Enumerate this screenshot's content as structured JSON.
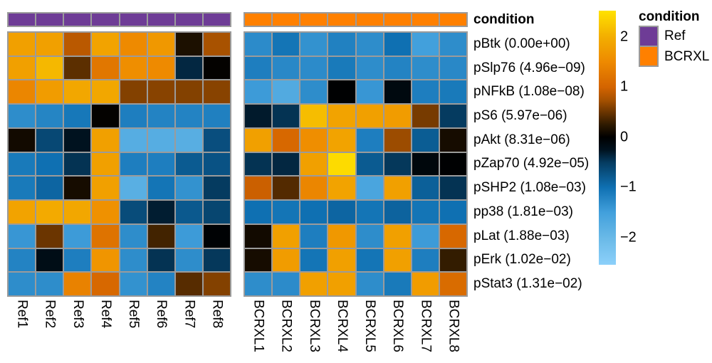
{
  "annotation": {
    "label": "condition",
    "groups": [
      {
        "name": "Ref",
        "color": "#6e3c96",
        "n_columns": 8
      },
      {
        "name": "BCRXL",
        "color": "#ff8000",
        "n_columns": 8
      }
    ]
  },
  "legend": {
    "title": "condition",
    "items": [
      {
        "label": "Ref",
        "color": "#6e3c96"
      },
      {
        "label": "BCRXL",
        "color": "#ff8000"
      }
    ]
  },
  "colorbar": {
    "ticks": [
      {
        "value": 2,
        "label": "2"
      },
      {
        "value": 1,
        "label": "1"
      },
      {
        "value": 0,
        "label": "0"
      },
      {
        "value": -1,
        "label": "−1"
      },
      {
        "value": -2,
        "label": "−2"
      }
    ],
    "domain": [
      -2.54,
      2.52
    ],
    "stops": [
      [
        2.52,
        "#FFE200"
      ],
      [
        2.0,
        "#F3AE00"
      ],
      [
        1.5,
        "#EE8A00"
      ],
      [
        1.0,
        "#D46400"
      ],
      [
        0.75,
        "#A85200"
      ],
      [
        0.5,
        "#6B3500"
      ],
      [
        0.25,
        "#2E1A00"
      ],
      [
        0.0,
        "#000000"
      ],
      [
        -0.25,
        "#00121F"
      ],
      [
        -0.5,
        "#053B60"
      ],
      [
        -1.0,
        "#0F70B2"
      ],
      [
        -1.5,
        "#42A0DC"
      ],
      [
        -2.0,
        "#69B9E7"
      ],
      [
        -2.54,
        "#8CD0FA"
      ]
    ],
    "gridline_color": "#9b9b9b"
  },
  "chart_data": {
    "type": "heatmap",
    "title": "",
    "zlim": [
      -2.54,
      2.52
    ],
    "rows": [
      "pBtk (0.00e+00)",
      "pSlp76 (4.96e−09)",
      "pNFkB (1.08e−08)",
      "pS6 (5.97e−06)",
      "pAkt (8.31e−06)",
      "pZap70 (4.92e−05)",
      "pSHP2 (1.08e−03)",
      "pp38 (1.81e−03)",
      "pLat (1.88e−03)",
      "pErk (1.02e−02)",
      "pStat3 (1.31e−02)"
    ],
    "columns_left": [
      "Ref1",
      "Ref2",
      "Ref3",
      "Ref4",
      "Ref5",
      "Ref6",
      "Ref7",
      "Ref8"
    ],
    "columns_right": [
      "BCRXL1",
      "BCRXL2",
      "BCRXL3",
      "BCRXL4",
      "BCRXL5",
      "BCRXL6",
      "BCRXL7",
      "BCRXL8"
    ],
    "values_left": [
      [
        1.8,
        1.8,
        0.85,
        1.85,
        1.5,
        1.7,
        0.15,
        0.75
      ],
      [
        1.8,
        2.1,
        0.44,
        1.25,
        1.55,
        1.5,
        -0.38,
        0.02
      ],
      [
        1.45,
        1.75,
        1.9,
        1.9,
        0.6,
        0.62,
        0.6,
        0.62
      ],
      [
        -1.3,
        -1.22,
        -1.08,
        0.02,
        -1.15,
        -1.2,
        -1.2,
        -1.17
      ],
      [
        0.1,
        -0.62,
        -0.25,
        1.8,
        -1.75,
        -1.75,
        -1.78,
        -0.68
      ],
      [
        -1.1,
        -1.0,
        -0.45,
        1.8,
        -1.15,
        -1.15,
        -0.8,
        -0.72
      ],
      [
        -1.1,
        -0.9,
        0.12,
        1.8,
        -1.8,
        -1.05,
        -1.35,
        -0.5
      ],
      [
        1.85,
        1.95,
        1.9,
        1.6,
        -0.66,
        -0.32,
        -0.78,
        -0.6
      ],
      [
        -1.4,
        0.5,
        -1.45,
        1.2,
        -1.3,
        0.33,
        -1.45,
        -0.03
      ],
      [
        -1.2,
        -0.18,
        -1.15,
        1.65,
        -1.3,
        -0.45,
        -1.3,
        -0.48
      ],
      [
        -1.3,
        -1.3,
        1.4,
        1.05,
        -1.35,
        -1.2,
        0.42,
        0.6
      ]
    ],
    "values_right": [
      [
        -1.28,
        -1.05,
        -1.35,
        -1.18,
        -1.3,
        -1.0,
        -1.5,
        -1.3
      ],
      [
        -1.15,
        -1.25,
        -1.28,
        -1.1,
        -1.3,
        -1.2,
        -1.3,
        -1.25
      ],
      [
        -1.45,
        -1.7,
        -1.3,
        -0.02,
        -1.4,
        -0.12,
        -1.15,
        -1.1
      ],
      [
        -0.3,
        -0.45,
        2.15,
        1.85,
        1.8,
        1.75,
        0.55,
        -0.5
      ],
      [
        1.8,
        1.05,
        1.55,
        1.85,
        -1.15,
        0.7,
        -0.82,
        0.12
      ],
      [
        -0.45,
        -0.38,
        1.8,
        2.45,
        -0.8,
        -0.48,
        -0.1,
        -0.02
      ],
      [
        0.95,
        0.4,
        1.45,
        1.85,
        -1.6,
        1.8,
        -0.85,
        -0.45
      ],
      [
        -1.0,
        -1.05,
        -1.0,
        -0.9,
        -1.05,
        -0.88,
        -1.05,
        -1.0
      ],
      [
        0.1,
        1.8,
        -1.15,
        1.7,
        -1.3,
        1.8,
        -1.45,
        1.05
      ],
      [
        0.12,
        1.75,
        -1.05,
        1.8,
        -1.05,
        1.8,
        -1.15,
        0.27
      ],
      [
        -1.3,
        -1.28,
        1.8,
        1.8,
        -1.3,
        -1.1,
        1.75,
        1.1
      ]
    ]
  }
}
